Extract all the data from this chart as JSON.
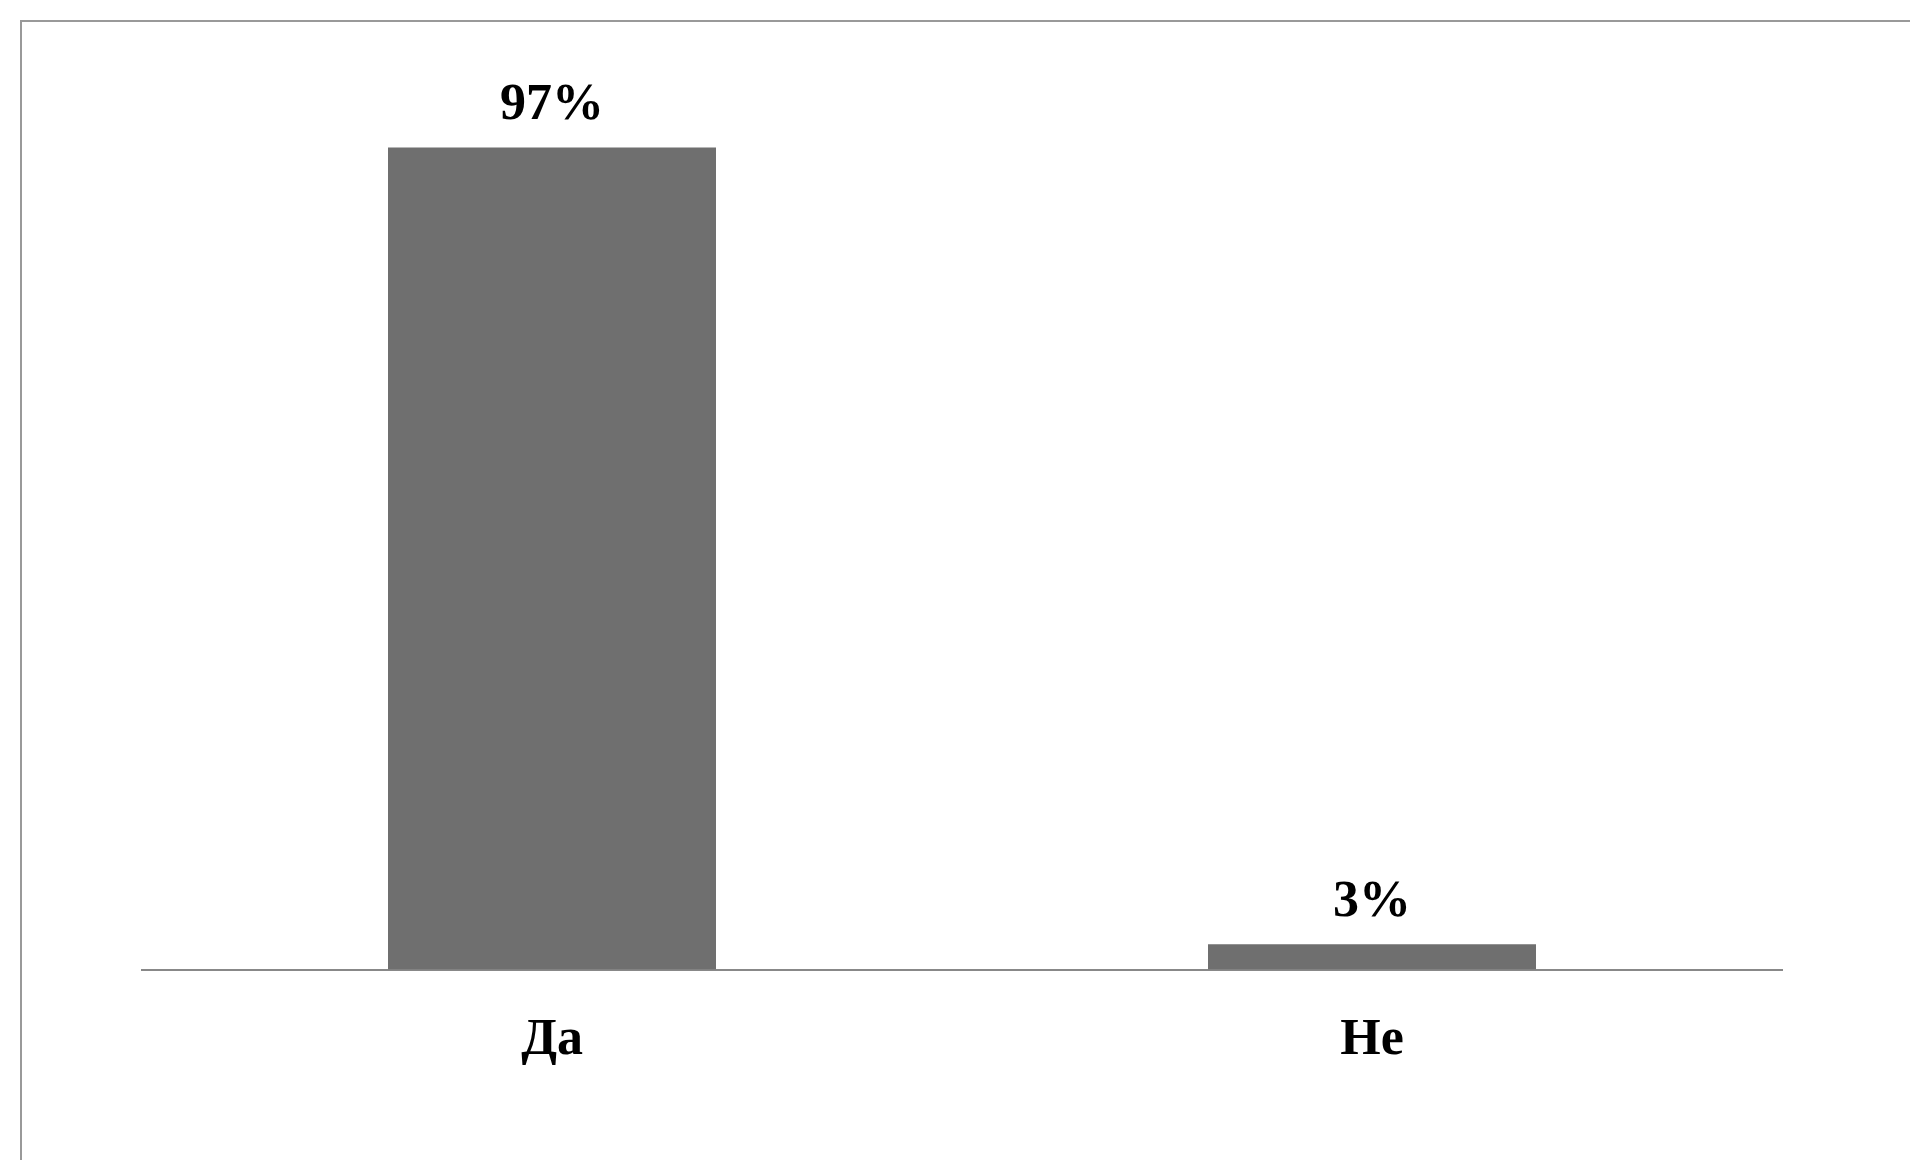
{
  "chart_data": {
    "type": "bar",
    "categories": [
      "Да",
      "Не"
    ],
    "values": [
      97,
      3
    ],
    "value_labels": [
      "97%",
      "3%"
    ],
    "color": "#6f6f6f",
    "legend": false,
    "grid": false
  }
}
